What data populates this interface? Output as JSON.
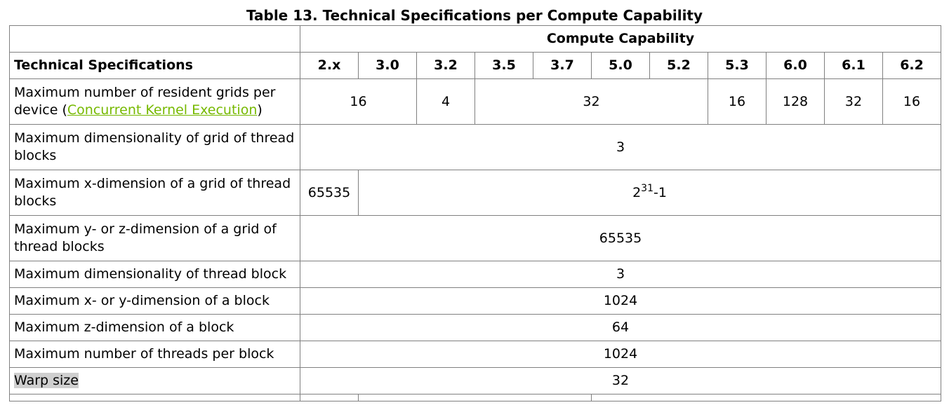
{
  "caption": "Table 13. Technical Specifications per Compute Capability",
  "table": {
    "group_header": "Compute Capability",
    "label_header": "Technical Specifications",
    "versions": [
      "2.x",
      "3.0",
      "3.2",
      "3.5",
      "3.7",
      "5.0",
      "5.2",
      "5.3",
      "6.0",
      "6.1",
      "6.2"
    ],
    "rows": {
      "grids": {
        "label_start": "Maximum number of resident grids per device (",
        "label_link": "Concurrent Kernel Execution",
        "label_end": ")",
        "v_2x_30": "16",
        "v_32": "4",
        "v_35_52": "32",
        "v_53": "16",
        "v_60": "128",
        "v_61": "32",
        "v_62": "16"
      },
      "grid_dim": {
        "label": "Maximum dimensionality of grid of thread blocks",
        "value": "3"
      },
      "grid_x": {
        "label": "Maximum x-dimension of a grid of thread blocks",
        "v_2x": "65535",
        "v_rest_base": "2",
        "v_rest_exp": "31",
        "v_rest_tail": "-1"
      },
      "grid_yz": {
        "label": "Maximum y- or z-dimension of a grid of thread blocks",
        "value": "65535"
      },
      "block_dim": {
        "label": "Maximum dimensionality of thread block",
        "value": "3"
      },
      "block_xy": {
        "label": "Maximum x- or y-dimension of a block",
        "value": "1024"
      },
      "block_z": {
        "label": "Maximum z-dimension of a block",
        "value": "64"
      },
      "threads": {
        "label": "Maximum number of threads per block",
        "value": "1024"
      },
      "warp": {
        "label": "Warp size",
        "value": "32"
      }
    }
  }
}
